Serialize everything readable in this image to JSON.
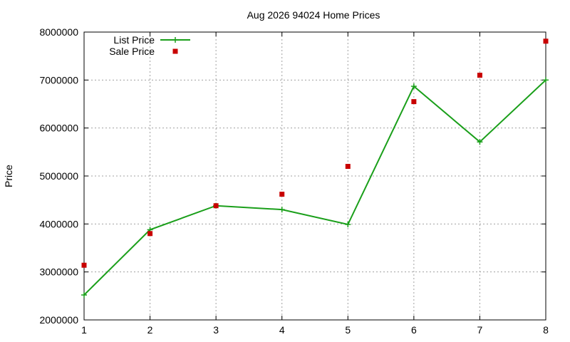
{
  "chart_data": {
    "type": "line",
    "title": "Aug 2026 94024 Home Prices",
    "xlabel": "",
    "ylabel": "Price",
    "x": [
      1,
      2,
      3,
      4,
      5,
      6,
      7,
      8
    ],
    "xlim": [
      1,
      8
    ],
    "ylim": [
      2000000,
      8000000
    ],
    "x_ticks": [
      1,
      2,
      3,
      4,
      5,
      6,
      7,
      8
    ],
    "y_ticks": [
      2000000,
      3000000,
      4000000,
      5000000,
      6000000,
      7000000,
      8000000
    ],
    "grid": true,
    "legend_position": "top-left",
    "series": [
      {
        "name": "List Price",
        "style": "linespoints",
        "marker": "plus",
        "color": "#1a9f1a",
        "values": [
          2520000,
          3880000,
          4380000,
          4300000,
          3990000,
          6870000,
          5710000,
          7000000
        ]
      },
      {
        "name": "Sale Price",
        "style": "points",
        "marker": "square",
        "color": "#c80000",
        "values": [
          3140000,
          3800000,
          4380000,
          4620000,
          5200000,
          6550000,
          7100000,
          7810000
        ]
      }
    ]
  }
}
